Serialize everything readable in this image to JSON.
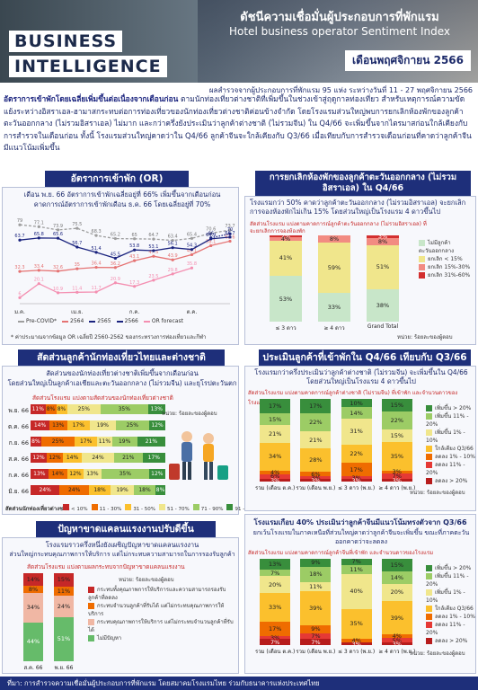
{
  "header": {
    "brand_line1": "BUSINESS",
    "brand_line2": "INTELLIGENCE",
    "title_th": "ดัชนีความเชื่อมั่นผู้ประกอบการที่พักแรม",
    "title_en": "Hotel business operator Sentiment Index",
    "month": "เดือนพฤศจิกายน 2566",
    "survey": "ผลสำรวจจากผู้ประกอบการที่พักแรม 95 แห่ง ระหว่างวันที่ 11 - 27 พฤศจิกายน 2566"
  },
  "intro": {
    "lead": "อัตราการเข้าพักโดยเฉลี่ยเพิ่มขึ้นต่อเนื่องจากเดือนก่อน",
    "body": "ตามนักท่องเที่ยวต่างชาติที่เพิ่มขึ้นในช่วงเข้าสู่ฤดูกาลท่องเที่ยว สำหรับเหตุการณ์ความขัดแย้งระหว่างอิสราเอล-ฮามาสกระทบต่อการท่องเที่ยวของนักท่องเที่ยวต่างชาติค่อนข้างจำกัด โดยโรงแรมส่วนใหญ่พบการยกเลิกห้องพักของลูกค้าตะวันออกกลาง (ไม่รวมอิสราเอล) ไม่มาก และกว่าครึ่งยังประเมินว่าลูกค้าต่างชาติ (ไม่รวมจีน) ใน Q4/66 จะเพิ่มขึ้นจากไตรมาสก่อนใกล้เคียงกับการสำรวจในเดือนก่อน ทั้งนี้ โรงแรมส่วนใหญ่คาดว่าใน Q4/66 ลูกค้าจีนจะใกล้เคียงกับ Q3/66 เมื่อเทียบกับการสำรวจเดือนก่อนที่คาดว่าลูกค้าจีนมีแนวโน้มเพิ่มขึ้น"
  },
  "occ": {
    "heading": "อัตราการเข้าพัก (OR)",
    "line1": "เดือน พ.ย. 66 อัตราการเข้าพักเฉลี่ยอยู่ที่ 66% เพิ่มขึ้นจากเดือนก่อน",
    "line2": "คาดการณ์อัตราการเข้าพักเดือน ธ.ค. 66 โดยเฉลี่ยอยู่ที่ 70%",
    "note": "* ค่าประมาณจากข้อมูล OR เฉลี่ยปี 2560-2562 ของกระทรวงการท่องเที่ยวและกีฬา"
  },
  "chart_data": {
    "type": "line",
    "categories": [
      "ม.ค.",
      "ก.พ.",
      "มี.ค.",
      "เม.ย.",
      "พ.ค.",
      "มิ.ย.",
      "ก.ค.",
      "ส.ค.",
      "ก.ย.",
      "ต.ค.",
      "พ.ย.",
      "ธ.ค."
    ],
    "xticks_shown": [
      "ม.ค.",
      "เม.ย.",
      "ก.ค.",
      "ต.ค."
    ],
    "ylim": [
      0,
      90
    ],
    "series": [
      {
        "name": "Pre-COVID*",
        "color": "#9e9e9e",
        "style": "dashed",
        "values": [
          79.0,
          77.1,
          73.9,
          75.5,
          68.3,
          65.2,
          65.0,
          64.7,
          63.4,
          65.4,
          70.6,
          73.7
        ]
      },
      {
        "name": "2564",
        "color": "#e57373",
        "style": "solid",
        "values": [
          32.3,
          33.4,
          32.6,
          35.0,
          36.4,
          36.2,
          43.1,
          47.5,
          43.9,
          49.1,
          58.1,
          62.6
        ]
      },
      {
        "name": "2565",
        "color": "#1a237e",
        "style": "solid",
        "values": [
          63.7,
          65.8,
          65.6,
          56.7,
          51.4,
          45.5,
          53.8,
          53.1,
          56.1,
          54.3,
          64.9,
          66.7
        ]
      },
      {
        "name": "OR Forecast",
        "color": "#1a237e",
        "style": "dotted",
        "values": [
          null,
          null,
          null,
          null,
          null,
          null,
          null,
          null,
          null,
          null,
          66.0,
          70.0
        ]
      },
      {
        "name": "2566",
        "color": "#f48fb1",
        "style": "solid",
        "values": [
          6.0,
          20.1,
          10.9,
          11.4,
          11.7,
          20.9,
          17.3,
          23.5,
          29.8,
          35.8,
          null,
          null
        ]
      }
    ],
    "legend": [
      "Pre-COVID*",
      "2564",
      "2565",
      "2566",
      "OR forecast"
    ]
  },
  "me": {
    "heading": "การยกเลิกห้องพักของลูกค้าตะวันออกกลาง (ไม่รวมอิสราเอล) ใน Q4/66",
    "text": "โรงแรมกว่า 50% คาดว่าลูกค้าตะวันออกกลาง (ไม่รวมอิสราเอล) จะยกเลิกการจองห้องพักไม่เกิน 15% โดยส่วนใหญ่เป็นโรงแรม 4 ดาวขึ้นไป",
    "subtitle": "สัดส่วนโรงแรม แบ่งตามคาดการณ์ลูกค้าตะวันออกกลาง (ไม่รวมอิสราเอล) ที่จะยกเลิกการจองห้องพัก",
    "unit": "หน่วย: ร้อยละของผู้ตอบ",
    "cols": [
      "≤ 3 ดาว",
      "≥ 4 ดาว",
      "Grand Total"
    ],
    "legend": [
      "ไม่มีลูกค้าตะวันออกกลาง",
      "ยกเลิก < 15%",
      "ยกเลิก 15%-30%",
      "ยกเลิก 31%-60%"
    ],
    "colors": [
      "#c8e6c9",
      "#f0e68c",
      "#f28b82",
      "#d32f2f"
    ],
    "stacks": [
      [
        53,
        41,
        4,
        2
      ],
      [
        33,
        59,
        8,
        0
      ],
      [
        38,
        51,
        8,
        3
      ]
    ]
  },
  "nat": {
    "heading": "สัดส่วนลูกค้านักท่องเที่ยวไทยและต่างชาติ",
    "text1": "สัดส่วนของนักท่องเที่ยวต่างชาติเพิ่มขึ้นจากเดือนก่อน",
    "text2": "โดยส่วนใหญ่เป็นลูกค้าเอเชียและตะวันออกกลาง (ไม่รวมจีน) และยุโรปตะวันตก",
    "subtitle": "สัดส่วนโรงแรม แบ่งตามสัดส่วนของนักท่องเที่ยวต่างชาติ",
    "unit": "หน่วย: ร้อยละของผู้ตอบ",
    "xlabel": "สัดส่วนนักท่องเที่ยวต่างชาติ",
    "legend": [
      "< 10%",
      "11 - 30%",
      "31 - 50%",
      "51 - 70%",
      "71 - 90%",
      "91 - 100%"
    ],
    "colors": [
      "#c62828",
      "#ef6c00",
      "#fbc02d",
      "#f0e68c",
      "#9ccc65",
      "#388e3c"
    ],
    "rows": [
      {
        "label": "พ.ย. 66",
        "vals": [
          11,
          8,
          8,
          25,
          35,
          13
        ]
      },
      {
        "label": "ต.ค. 66",
        "vals": [
          14,
          13,
          17,
          19,
          25,
          12
        ]
      },
      {
        "label": "ก.ย. 66",
        "vals": [
          8,
          25,
          17,
          11,
          19,
          21
        ]
      },
      {
        "label": "ส.ค. 66",
        "vals": [
          12,
          12,
          14,
          24,
          21,
          17
        ]
      },
      {
        "label": "ก.ค. 66",
        "vals": [
          13,
          14,
          12,
          13,
          35,
          12
        ]
      },
      {
        "label": "มิ.ย. 66",
        "vals": [
          24,
          24,
          18,
          19,
          18,
          8
        ]
      }
    ]
  },
  "q4": {
    "heading": "ประเมินลูกค้าที่เข้าพักใน Q4/66 เทียบกับ Q3/66",
    "text": "โรงแรมกว่าครึ่งประเมินว่าลูกค้าต่างชาติ (ไม่รวมจีน) จะเพิ่มขึ้นใน Q4/66 โดยส่วนใหญ่เป็นโรงแรม 4 ดาวขึ้นไป",
    "subtitle": "สัดส่วนโรงแรม แบ่งตามคาดการณ์ลูกค้าต่างชาติ (ไม่รวมจีน) ที่เข้าพัก และจำนวนดาวของโรงแรม",
    "unit": "หน่วย: ร้อยละของผู้ตอบ",
    "cols": [
      "รวม (เดือน ต.ค.)",
      "รวม (เดือน พ.ย.)",
      "≤ 3 ดาว (พ.ย.)",
      "≥ 4 ดาว (พ.ย.)"
    ],
    "legend": [
      "เพิ่มขึ้น > 20%",
      "เพิ่มขึ้น 11% - 20%",
      "เพิ่มขึ้น 1% - 10%",
      "ใกล้เคียง Q3/66",
      "ลดลง 1% - 10%",
      "ลดลง 11% - 20%",
      "ลดลง > 20%"
    ],
    "colors": [
      "#388e3c",
      "#9ccc65",
      "#f0e68c",
      "#fbc02d",
      "#ef6c00",
      "#e53935",
      "#b71c1c"
    ],
    "stacks": [
      [
        17,
        15,
        21,
        34,
        4,
        6,
        3
      ],
      [
        17,
        22,
        21,
        28,
        6,
        3,
        3
      ],
      [
        10,
        14,
        31,
        22,
        17,
        3,
        3
      ],
      [
        15,
        22,
        15,
        35,
        3,
        7,
        3
      ]
    ]
  },
  "labour": {
    "heading": "ปัญหาขาดแคลนแรงงานปรับดีขึ้น",
    "text1": "โรงแรมราวครึ่งหนึ่งยังเผชิญปัญหาขาดแคลนแรงงาน",
    "text2": "ส่วนใหญ่กระทบคุณภาพการให้บริการ แต่ไม่กระทบความสามารถในการรองรับลูกค้า",
    "subtitle": "สัดส่วนโรงแรม แบ่งตามผลกระทบจากปัญหาขาดแคลนแรงงาน",
    "unit": "หน่วย: ร้อยละของผู้ตอบ",
    "cols": [
      "ส.ค. 66",
      "พ.ย. 66"
    ],
    "legend": [
      "กระทบทั้งคุณภาพการให้บริการและความสามารถรองรับลูกค้าที่ลดลง",
      "กระทบจำนวนลูกค้าที่รับได้ แต่ไม่กระทบคุณภาพการให้บริการ",
      "กระทบคุณภาพการให้บริการ แต่ไม่กระทบจำนวนลูกค้าที่รับได้",
      "ไม่มีปัญหา"
    ],
    "colors": [
      "#c62828",
      "#ef6c00",
      "#f0b7a4",
      "#66bb6a"
    ],
    "stacks": [
      [
        14,
        8,
        34,
        44
      ],
      [
        15,
        11,
        24,
        51
      ]
    ]
  },
  "cn": {
    "heading": "โรงแรมเกือบ 40% ประเมินว่าลูกค้าจีนมีแนวโน้มทรงตัวจาก Q3/66",
    "text": "ยกเว้นโรงแรมในภาคเหนือที่ส่วนใหญ่คาดว่าลูกค้าจีนจะเพิ่มขึ้น ขณะที่ภาคตะวันออกคาดว่าจะลดลง",
    "subtitle": "สัดส่วนโรงแรม แบ่งตามคาดการณ์ลูกค้าจีนที่เข้าพัก และจำนวนดาวของโรงแรม",
    "unit": "หน่วย: ร้อยละของผู้ตอบ",
    "cols": [
      "รวม (เดือน ต.ค.)",
      "รวม (เดือน พ.ย.)",
      "≤ 3 ดาว (พ.ย.)",
      "≥ 4 ดาว (พ.ย.)"
    ],
    "stacks": [
      [
        13,
        7,
        20,
        33,
        17,
        3,
        7
      ],
      [
        9,
        18,
        11,
        39,
        9,
        7,
        7
      ],
      [
        7,
        11,
        40,
        35,
        4,
        0,
        3
      ],
      [
        15,
        14,
        20,
        39,
        4,
        5,
        3
      ]
    ]
  },
  "footer": "ที่มา: การสำรวจความเชื่อมั่นผู้ประกอบการที่พักแรม โดยสมาคมโรงแรมไทย ร่วมกับธนาคารแห่งประเทศไทย"
}
